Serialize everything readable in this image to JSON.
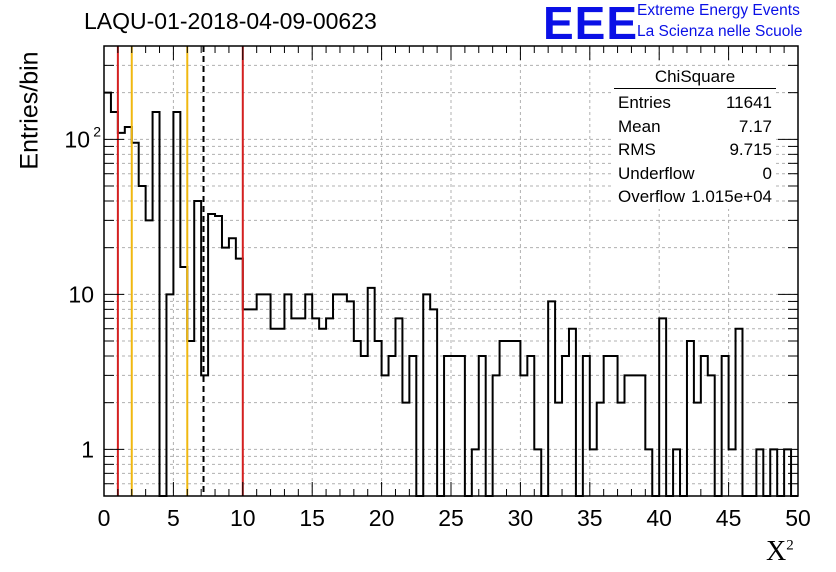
{
  "chart_data": {
    "type": "bar",
    "title": "LAQU-01-2018-04-09-00623",
    "xlabel": "X",
    "xlabel_sup": "2",
    "ylabel": "Entries/bin",
    "xlim": [
      0,
      50
    ],
    "ylim": [
      0.5,
      400
    ],
    "yscale": "log",
    "grid": true,
    "bin_width": 0.5,
    "x_ticks": [
      "0",
      "5",
      "10",
      "15",
      "20",
      "25",
      "30",
      "35",
      "40",
      "45",
      "50"
    ],
    "y_ticks": [
      {
        "value": 1,
        "label": "1"
      },
      {
        "value": 10,
        "label": "10"
      },
      {
        "value": 100,
        "label": "10",
        "sup": "2"
      }
    ],
    "values": [
      200,
      150,
      110,
      120,
      95,
      50,
      30,
      150,
      0,
      10,
      150,
      15,
      5,
      40,
      3,
      33,
      32,
      20,
      23,
      17,
      8,
      8,
      10,
      10,
      6,
      6,
      10,
      7,
      7,
      10,
      7,
      6,
      7,
      10,
      10,
      9,
      5,
      4,
      11,
      5,
      3,
      4,
      7,
      2,
      4,
      0,
      10,
      8,
      0,
      4,
      4,
      4,
      0,
      1,
      4,
      0,
      3,
      5,
      5,
      5,
      3,
      4,
      1,
      0,
      9,
      2,
      4,
      6,
      0,
      4,
      1,
      2,
      4,
      4,
      2,
      3,
      3,
      3,
      1,
      0,
      7,
      0,
      1,
      0,
      5,
      2,
      4,
      3,
      0,
      4,
      1,
      6,
      0,
      0,
      1,
      0,
      1,
      0,
      1,
      0
    ],
    "lines": [
      {
        "x": 1,
        "color": "#d42020",
        "style": "solid"
      },
      {
        "x": 2,
        "color": "#f0b810",
        "style": "solid"
      },
      {
        "x": 6,
        "color": "#f0b810",
        "style": "solid"
      },
      {
        "x": 7.17,
        "color": "#000000",
        "style": "dashed"
      },
      {
        "x": 10,
        "color": "#d42020",
        "style": "solid"
      }
    ]
  },
  "logo": {
    "text": "EEE",
    "line1": "Extreme Energy Events",
    "line2": "La Scienza nelle Scuole",
    "color": "#0a10e6"
  },
  "stats": {
    "title": "ChiSquare",
    "rows": [
      {
        "key": "Entries",
        "value": "11641"
      },
      {
        "key": "Mean",
        "value": "7.17"
      },
      {
        "key": "RMS",
        "value": "9.715"
      },
      {
        "key": "Underflow",
        "value": "0"
      },
      {
        "key": "Overflow",
        "value": "1.015e+04"
      }
    ]
  }
}
